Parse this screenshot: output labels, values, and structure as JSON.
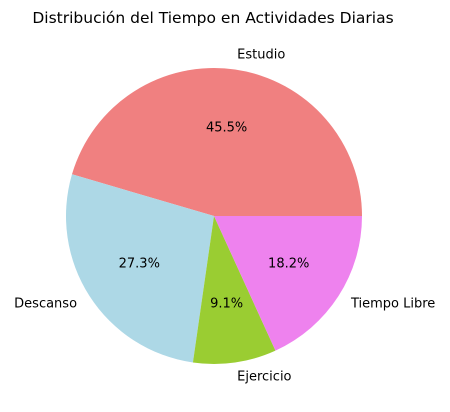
{
  "chart_data": {
    "type": "pie",
    "title": "Distribución del Tiempo en Actividades Diarias",
    "categories": [
      "Estudio",
      "Descanso",
      "Ejercicio",
      "Tiempo Libre"
    ],
    "values": [
      45.5,
      27.3,
      9.1,
      18.2
    ],
    "percent_labels": [
      "45.5%",
      "27.3%",
      "9.1%",
      "18.2%"
    ],
    "colors": [
      "#f08080",
      "#add8e6",
      "#9acd32",
      "#ee82ee"
    ],
    "start_angle_deg": 0,
    "direction": "counterclockwise"
  }
}
